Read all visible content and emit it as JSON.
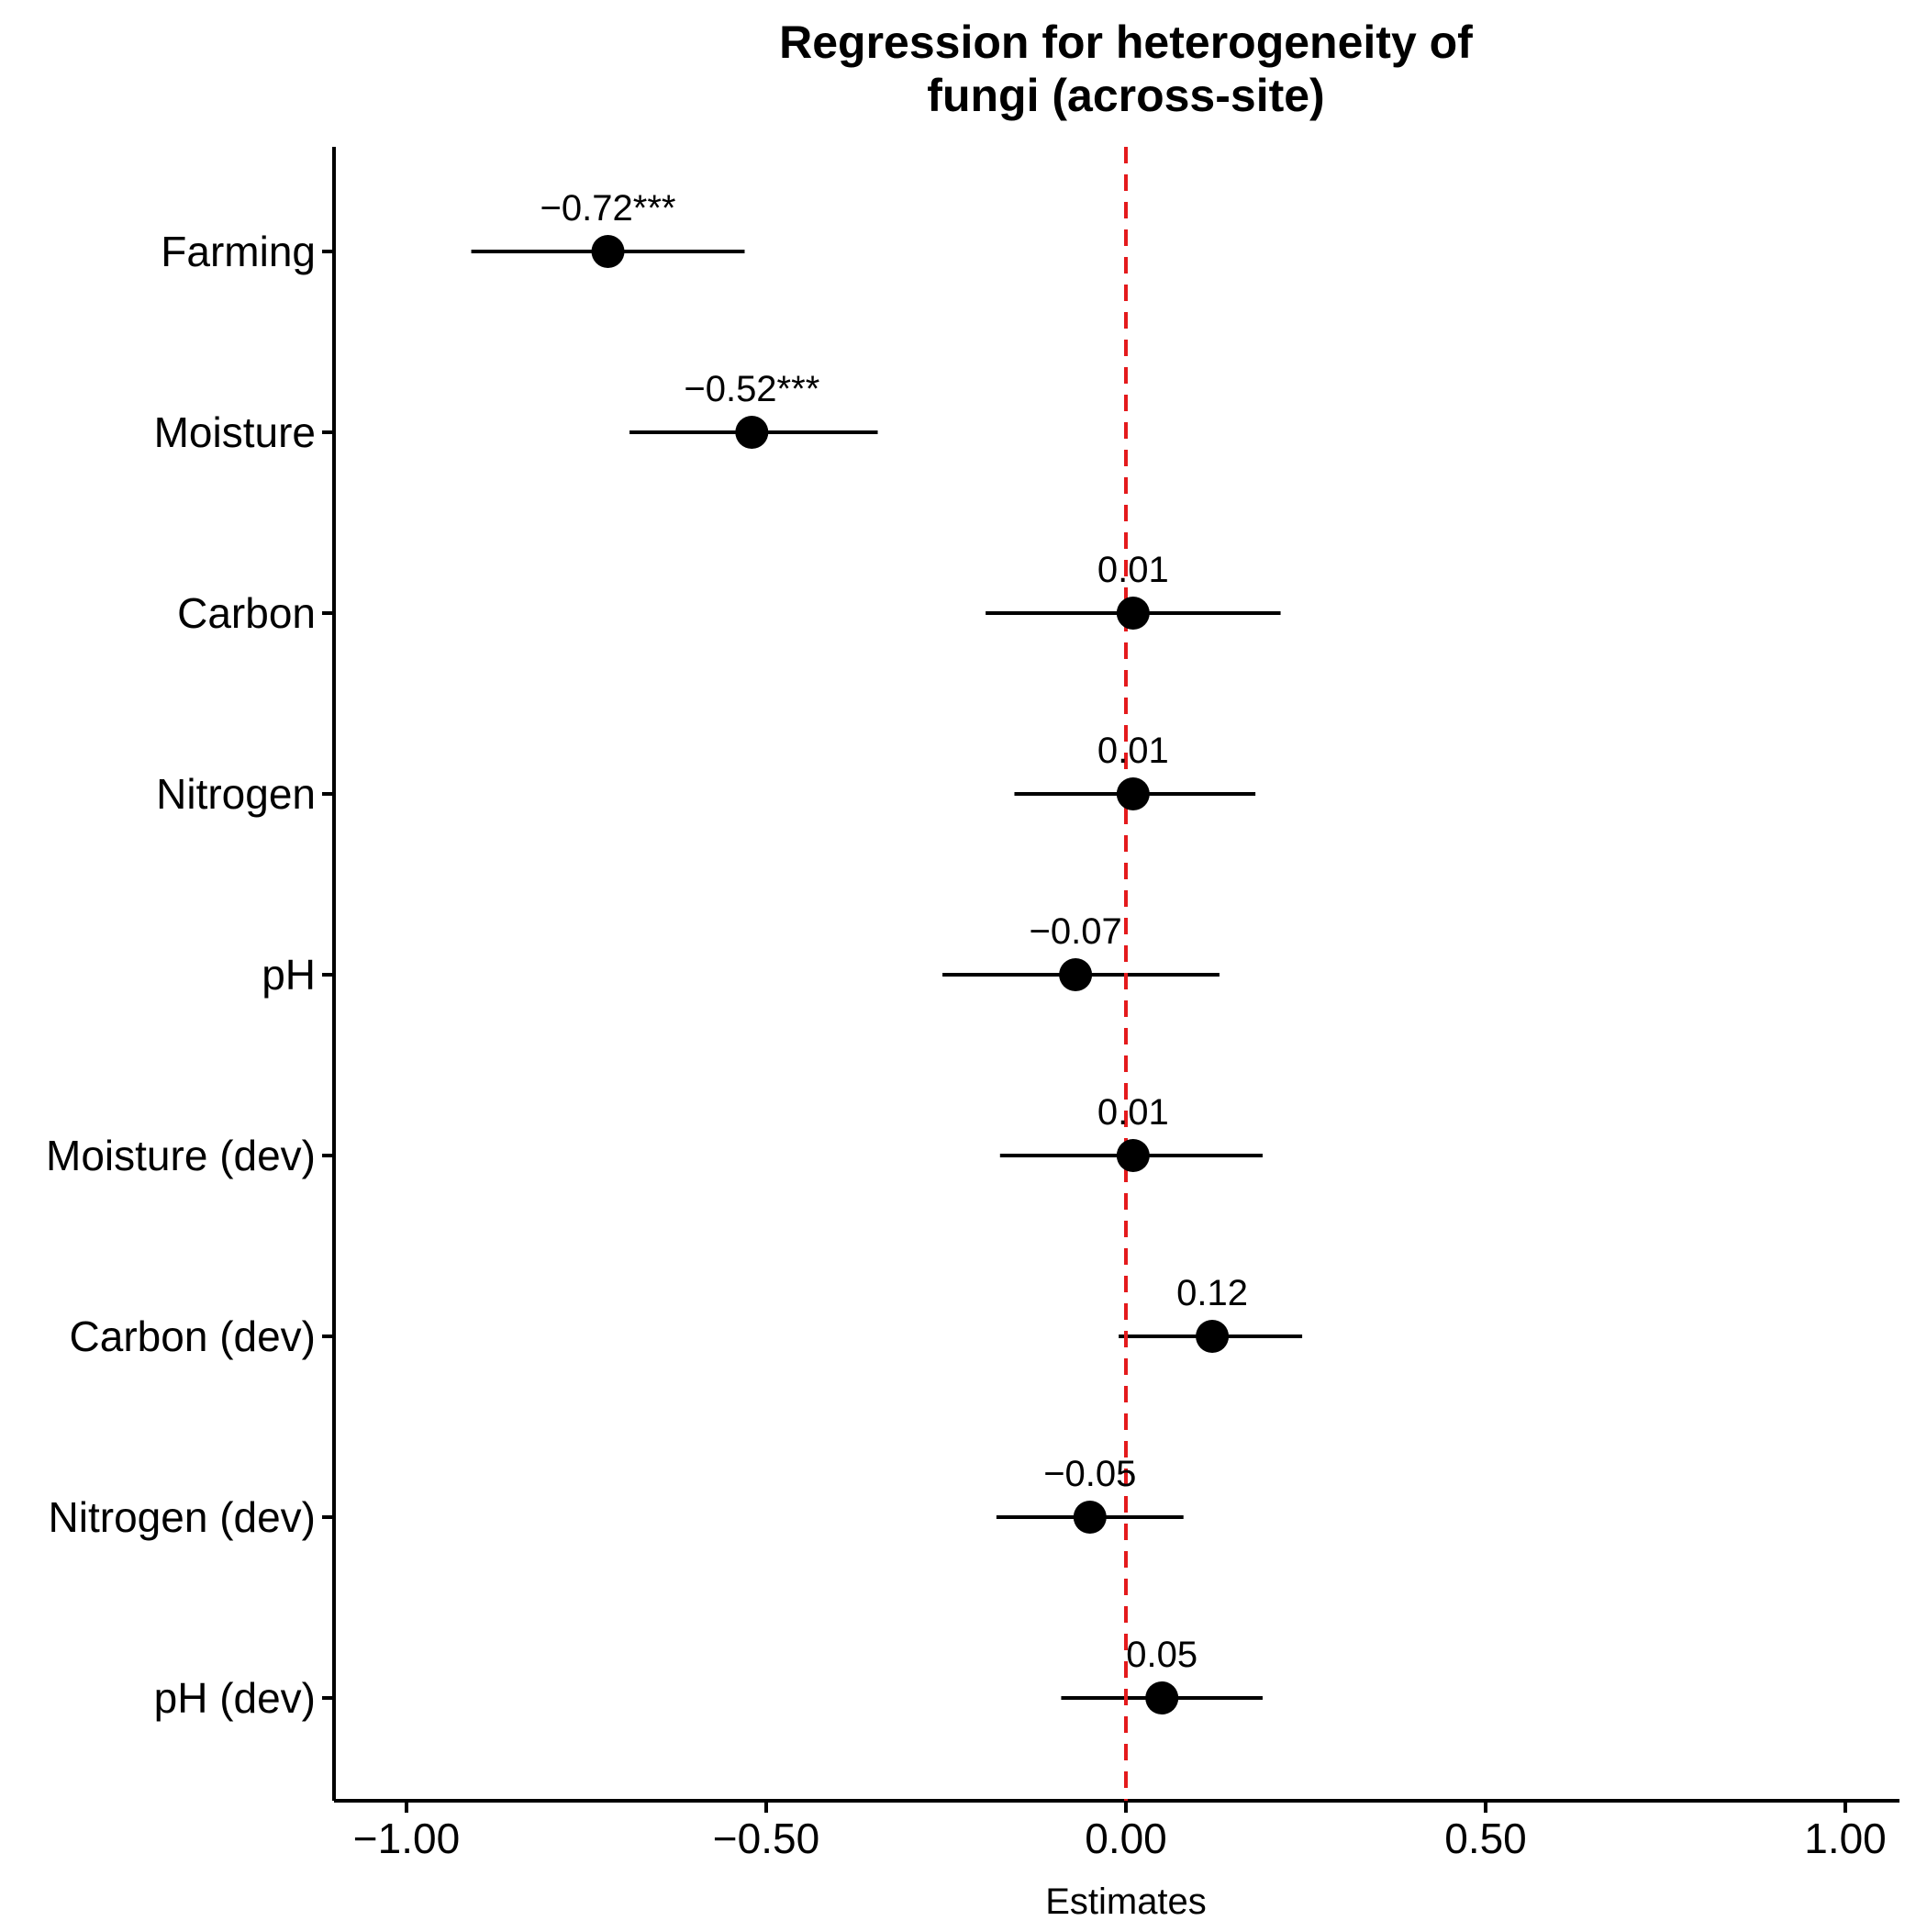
{
  "chart_data": {
    "type": "scatter",
    "subtype": "coefficient-plot",
    "title_lines": [
      "Regression for heterogeneity of",
      "fungi (across-site)"
    ],
    "xlabel": "Estimates",
    "ylabel": "",
    "xlim": [
      -1.1,
      1.1
    ],
    "x_ticks": [
      -1.0,
      -0.5,
      0.0,
      0.5,
      1.0
    ],
    "x_tick_labels": [
      "−1.00",
      "−0.50",
      "0.00",
      "0.50",
      "1.00"
    ],
    "reference_line": {
      "x": 0,
      "style": "dashed",
      "color": "#e41a1c"
    },
    "grid": false,
    "legend": "none",
    "point_color": "#000000",
    "categories": [
      "Farming",
      "Moisture",
      "Carbon",
      "Nitrogen",
      "pH",
      "Moisture (dev)",
      "Carbon (dev)",
      "Nitrogen (dev)",
      "pH (dev)"
    ],
    "estimates": [
      -0.72,
      -0.52,
      0.01,
      0.01,
      -0.07,
      0.01,
      0.12,
      -0.05,
      0.05
    ],
    "ci_low": [
      -0.91,
      -0.69,
      -0.195,
      -0.155,
      -0.255,
      -0.175,
      -0.01,
      -0.18,
      -0.09
    ],
    "ci_high": [
      -0.53,
      -0.345,
      0.215,
      0.18,
      0.13,
      0.19,
      0.245,
      0.08,
      0.19
    ],
    "value_labels": [
      "−0.72***",
      "−0.52***",
      "0.01",
      "0.01",
      "−0.07",
      "0.01",
      "0.12",
      "−0.05",
      "0.05"
    ]
  }
}
